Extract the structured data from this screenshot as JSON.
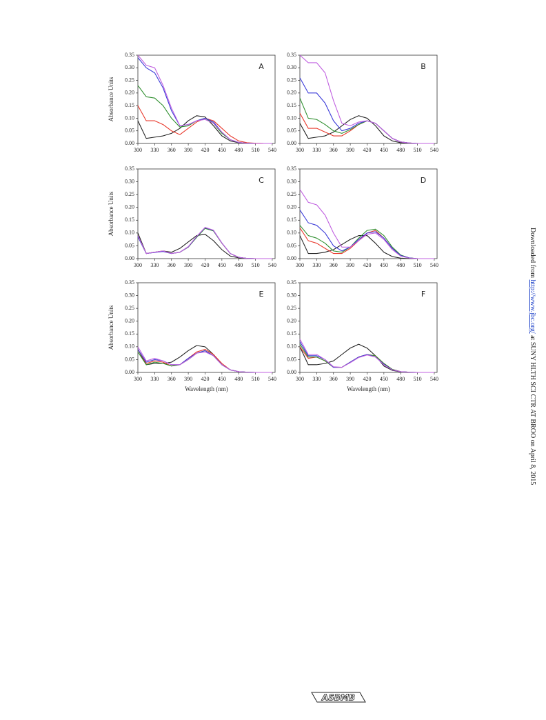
{
  "chart_data": [
    {
      "type": "line",
      "panel": "A",
      "ylabel": "Absorbance Units",
      "x": [
        300,
        315,
        330,
        345,
        360,
        375,
        390,
        405,
        420,
        435,
        450,
        465,
        480,
        495,
        510,
        525,
        540
      ],
      "xlim": [
        300,
        545
      ],
      "ylim": [
        0,
        0.35
      ],
      "xticks": [
        300,
        330,
        360,
        390,
        420,
        450,
        480,
        510,
        540
      ],
      "yticks": [
        {
          "value": 0,
          "label": "0.00"
        },
        0.05,
        {
          "value": 0.1,
          "label": "0.10"
        },
        0.15,
        {
          "value": 0.2,
          "label": "0.20"
        },
        0.25,
        {
          "value": 0.3,
          "label": "0.30"
        },
        0.35
      ],
      "series": [
        {
          "color": "#222222",
          "values": [
            0.09,
            0.02,
            0.025,
            0.03,
            0.04,
            0.06,
            0.09,
            0.11,
            0.105,
            0.07,
            0.03,
            0.01,
            0.003,
            0.001,
            0,
            0,
            0
          ]
        },
        {
          "color": "#e8382b",
          "values": [
            0.15,
            0.09,
            0.09,
            0.075,
            0.05,
            0.035,
            0.06,
            0.085,
            0.1,
            0.09,
            0.06,
            0.03,
            0.01,
            0.003,
            0.001,
            0,
            0
          ]
        },
        {
          "color": "#2f8f2f",
          "values": [
            0.23,
            0.185,
            0.18,
            0.15,
            0.1,
            0.065,
            0.07,
            0.09,
            0.1,
            0.08,
            0.04,
            0.015,
            0.004,
            0.001,
            0,
            0,
            0
          ]
        },
        {
          "color": "#3a3ad8",
          "values": [
            0.34,
            0.3,
            0.28,
            0.22,
            0.13,
            0.07,
            0.075,
            0.09,
            0.1,
            0.085,
            0.045,
            0.015,
            0.004,
            0.001,
            0,
            0,
            0
          ]
        },
        {
          "color": "#c060e0",
          "values": [
            0.35,
            0.31,
            0.3,
            0.23,
            0.14,
            0.07,
            0.075,
            0.09,
            0.095,
            0.08,
            0.045,
            0.015,
            0.004,
            0.001,
            0,
            0,
            0
          ]
        }
      ]
    },
    {
      "type": "line",
      "panel": "B",
      "x": [
        300,
        315,
        330,
        345,
        360,
        375,
        390,
        405,
        420,
        435,
        450,
        465,
        480,
        495,
        510,
        525,
        540
      ],
      "xlim": [
        300,
        545
      ],
      "ylim": [
        0,
        0.35
      ],
      "xticks": [
        300,
        330,
        360,
        390,
        420,
        450,
        480,
        510,
        540
      ],
      "yticks": [
        {
          "value": 0,
          "label": "0.00"
        },
        0.05,
        {
          "value": 0.1,
          "label": "0.10"
        },
        0.15,
        {
          "value": 0.2,
          "label": "0.20"
        },
        0.25,
        {
          "value": 0.3,
          "label": "0.30"
        },
        0.35
      ],
      "series": [
        {
          "color": "#222222",
          "values": [
            0.08,
            0.02,
            0.025,
            0.03,
            0.045,
            0.07,
            0.095,
            0.11,
            0.1,
            0.07,
            0.03,
            0.01,
            0.003,
            0.001,
            0,
            0,
            0
          ]
        },
        {
          "color": "#e8382b",
          "values": [
            0.12,
            0.06,
            0.06,
            0.045,
            0.03,
            0.03,
            0.05,
            0.075,
            0.09,
            0.08,
            0.05,
            0.02,
            0.006,
            0.002,
            0,
            0,
            0
          ]
        },
        {
          "color": "#2f8f2f",
          "values": [
            0.18,
            0.1,
            0.095,
            0.075,
            0.05,
            0.04,
            0.055,
            0.075,
            0.09,
            0.08,
            0.05,
            0.02,
            0.006,
            0.002,
            0,
            0,
            0
          ]
        },
        {
          "color": "#3a3ad8",
          "values": [
            0.26,
            0.2,
            0.2,
            0.16,
            0.09,
            0.05,
            0.06,
            0.08,
            0.09,
            0.08,
            0.05,
            0.02,
            0.006,
            0.002,
            0,
            0,
            0
          ]
        },
        {
          "color": "#c060e0",
          "values": [
            0.35,
            0.32,
            0.32,
            0.28,
            0.17,
            0.08,
            0.07,
            0.085,
            0.09,
            0.08,
            0.05,
            0.02,
            0.006,
            0.002,
            0,
            0,
            0
          ]
        }
      ]
    },
    {
      "type": "line",
      "panel": "C",
      "ylabel": "Absorbance Units",
      "x": [
        300,
        315,
        330,
        345,
        360,
        375,
        390,
        405,
        420,
        435,
        450,
        465,
        480,
        495,
        510,
        525,
        540
      ],
      "xlim": [
        300,
        545
      ],
      "ylim": [
        0,
        0.35
      ],
      "xticks": [
        300,
        330,
        360,
        390,
        420,
        450,
        480,
        510,
        540
      ],
      "yticks": [
        {
          "value": 0,
          "label": "0.00"
        },
        0.05,
        {
          "value": 0.1,
          "label": "0.10"
        },
        0.15,
        {
          "value": 0.2,
          "label": "0.20"
        },
        0.25,
        {
          "value": 0.3,
          "label": "0.30"
        },
        0.35
      ],
      "series": [
        {
          "color": "#222222",
          "values": [
            0.1,
            0.02,
            0.025,
            0.03,
            0.025,
            0.04,
            0.065,
            0.09,
            0.095,
            0.07,
            0.035,
            0.01,
            0.003,
            0.001,
            0,
            0,
            0
          ]
        },
        {
          "color": "#e8382b",
          "values": [
            0.09,
            0.02,
            0.025,
            0.03,
            0.02,
            0.025,
            0.045,
            0.085,
            0.12,
            0.11,
            0.06,
            0.02,
            0.005,
            0.001,
            0,
            0,
            0
          ]
        },
        {
          "color": "#2f8f2f",
          "values": [
            0.09,
            0.02,
            0.025,
            0.028,
            0.02,
            0.025,
            0.045,
            0.083,
            0.118,
            0.108,
            0.06,
            0.02,
            0.005,
            0.001,
            0,
            0,
            0
          ]
        },
        {
          "color": "#3a3ad8",
          "values": [
            0.085,
            0.02,
            0.024,
            0.028,
            0.02,
            0.025,
            0.046,
            0.086,
            0.121,
            0.11,
            0.061,
            0.02,
            0.005,
            0.001,
            0,
            0,
            0
          ]
        },
        {
          "color": "#c060e0",
          "values": [
            0.09,
            0.02,
            0.025,
            0.03,
            0.02,
            0.025,
            0.047,
            0.087,
            0.122,
            0.111,
            0.061,
            0.02,
            0.005,
            0.001,
            0,
            0,
            0
          ]
        }
      ]
    },
    {
      "type": "line",
      "panel": "D",
      "x": [
        300,
        315,
        330,
        345,
        360,
        375,
        390,
        405,
        420,
        435,
        450,
        465,
        480,
        495,
        510,
        525,
        540
      ],
      "xlim": [
        300,
        545
      ],
      "ylim": [
        0,
        0.35
      ],
      "xticks": [
        300,
        330,
        360,
        390,
        420,
        450,
        480,
        510,
        540
      ],
      "yticks": [
        {
          "value": 0,
          "label": "0.00"
        },
        0.05,
        {
          "value": 0.1,
          "label": "0.10"
        },
        0.15,
        {
          "value": 0.2,
          "label": "0.20"
        },
        0.25,
        {
          "value": 0.3,
          "label": "0.30"
        },
        0.35
      ],
      "series": [
        {
          "color": "#222222",
          "values": [
            0.09,
            0.02,
            0.02,
            0.025,
            0.035,
            0.055,
            0.075,
            0.09,
            0.09,
            0.06,
            0.025,
            0.008,
            0.002,
            0,
            0,
            0,
            0
          ]
        },
        {
          "color": "#e8382b",
          "values": [
            0.12,
            0.07,
            0.06,
            0.04,
            0.02,
            0.02,
            0.04,
            0.07,
            0.1,
            0.11,
            0.08,
            0.04,
            0.012,
            0.003,
            0,
            0,
            0
          ]
        },
        {
          "color": "#2f8f2f",
          "values": [
            0.13,
            0.09,
            0.08,
            0.06,
            0.03,
            0.025,
            0.045,
            0.08,
            0.11,
            0.115,
            0.09,
            0.045,
            0.014,
            0.003,
            0,
            0,
            0
          ]
        },
        {
          "color": "#3a3ad8",
          "values": [
            0.19,
            0.14,
            0.13,
            0.1,
            0.05,
            0.03,
            0.045,
            0.075,
            0.1,
            0.105,
            0.08,
            0.04,
            0.012,
            0.003,
            0,
            0,
            0
          ]
        },
        {
          "color": "#c060e0",
          "values": [
            0.27,
            0.22,
            0.21,
            0.17,
            0.1,
            0.045,
            0.045,
            0.07,
            0.095,
            0.1,
            0.075,
            0.035,
            0.01,
            0.002,
            0,
            0,
            0
          ]
        }
      ]
    },
    {
      "type": "line",
      "panel": "E",
      "ylabel": "Absorbance Units",
      "xlabel": "Wavelength (nm)",
      "x": [
        300,
        315,
        330,
        345,
        360,
        375,
        390,
        405,
        420,
        435,
        450,
        465,
        480,
        495,
        510,
        525,
        540
      ],
      "xlim": [
        300,
        545
      ],
      "ylim": [
        0,
        0.35
      ],
      "xticks": [
        300,
        330,
        360,
        390,
        420,
        450,
        480,
        510,
        540
      ],
      "yticks": [
        {
          "value": 0,
          "label": "0.00"
        },
        0.05,
        {
          "value": 0.1,
          "label": "0.10"
        },
        0.15,
        {
          "value": 0.2,
          "label": "0.20"
        },
        0.25,
        {
          "value": 0.3,
          "label": "0.30"
        },
        0.35
      ],
      "series": [
        {
          "color": "#222222",
          "values": [
            0.09,
            0.03,
            0.035,
            0.035,
            0.04,
            0.06,
            0.085,
            0.105,
            0.1,
            0.07,
            0.03,
            0.01,
            0.003,
            0.001,
            0,
            0,
            0
          ]
        },
        {
          "color": "#e8382b",
          "values": [
            0.09,
            0.035,
            0.045,
            0.04,
            0.025,
            0.03,
            0.055,
            0.08,
            0.09,
            0.07,
            0.035,
            0.01,
            0.003,
            0.001,
            0,
            0,
            0
          ]
        },
        {
          "color": "#2f8f2f",
          "values": [
            0.08,
            0.03,
            0.04,
            0.035,
            0.025,
            0.03,
            0.05,
            0.075,
            0.085,
            0.065,
            0.03,
            0.01,
            0.003,
            0.001,
            0,
            0,
            0
          ]
        },
        {
          "color": "#3a3ad8",
          "values": [
            0.09,
            0.04,
            0.05,
            0.045,
            0.03,
            0.03,
            0.055,
            0.075,
            0.085,
            0.065,
            0.03,
            0.01,
            0.003,
            0.001,
            0,
            0,
            0
          ]
        },
        {
          "color": "#c060e0",
          "values": [
            0.1,
            0.045,
            0.055,
            0.045,
            0.03,
            0.03,
            0.05,
            0.075,
            0.08,
            0.065,
            0.03,
            0.01,
            0.003,
            0.001,
            0,
            0,
            0
          ]
        }
      ]
    },
    {
      "type": "line",
      "panel": "F",
      "xlabel": "Wavelength (nm)",
      "x": [
        300,
        315,
        330,
        345,
        360,
        375,
        390,
        405,
        420,
        435,
        450,
        465,
        480,
        495,
        510,
        525,
        540
      ],
      "xlim": [
        300,
        545
      ],
      "ylim": [
        0,
        0.35
      ],
      "xticks": [
        300,
        330,
        360,
        390,
        420,
        450,
        480,
        510,
        540
      ],
      "yticks": [
        {
          "value": 0,
          "label": "0.00"
        },
        0.05,
        {
          "value": 0.1,
          "label": "0.10"
        },
        0.15,
        {
          "value": 0.2,
          "label": "0.20"
        },
        0.25,
        {
          "value": 0.3,
          "label": "0.30"
        },
        0.35
      ],
      "series": [
        {
          "color": "#222222",
          "values": [
            0.1,
            0.03,
            0.03,
            0.035,
            0.045,
            0.07,
            0.095,
            0.11,
            0.095,
            0.065,
            0.025,
            0.008,
            0.002,
            0,
            0,
            0,
            0
          ]
        },
        {
          "color": "#e8382b",
          "values": [
            0.1,
            0.055,
            0.06,
            0.045,
            0.02,
            0.02,
            0.04,
            0.06,
            0.07,
            0.065,
            0.035,
            0.012,
            0.003,
            0.001,
            0,
            0,
            0
          ]
        },
        {
          "color": "#2f8f2f",
          "values": [
            0.11,
            0.06,
            0.06,
            0.045,
            0.02,
            0.02,
            0.04,
            0.06,
            0.07,
            0.065,
            0.035,
            0.012,
            0.003,
            0.001,
            0,
            0,
            0
          ]
        },
        {
          "color": "#3a3ad8",
          "values": [
            0.12,
            0.065,
            0.065,
            0.05,
            0.02,
            0.02,
            0.04,
            0.06,
            0.07,
            0.06,
            0.032,
            0.01,
            0.003,
            0.001,
            0,
            0,
            0
          ]
        },
        {
          "color": "#c060e0",
          "values": [
            0.13,
            0.07,
            0.07,
            0.05,
            0.022,
            0.02,
            0.038,
            0.058,
            0.068,
            0.06,
            0.03,
            0.01,
            0.003,
            0.001,
            0,
            0,
            0
          ]
        }
      ]
    }
  ],
  "side_note": {
    "prefix": "Downloaded from ",
    "link": "http://www.jbc.org/",
    "suffix": " at SUNY HLTH SCI CTR AT BROO on April 8, 2015"
  },
  "footer_logo": "ASBMB"
}
